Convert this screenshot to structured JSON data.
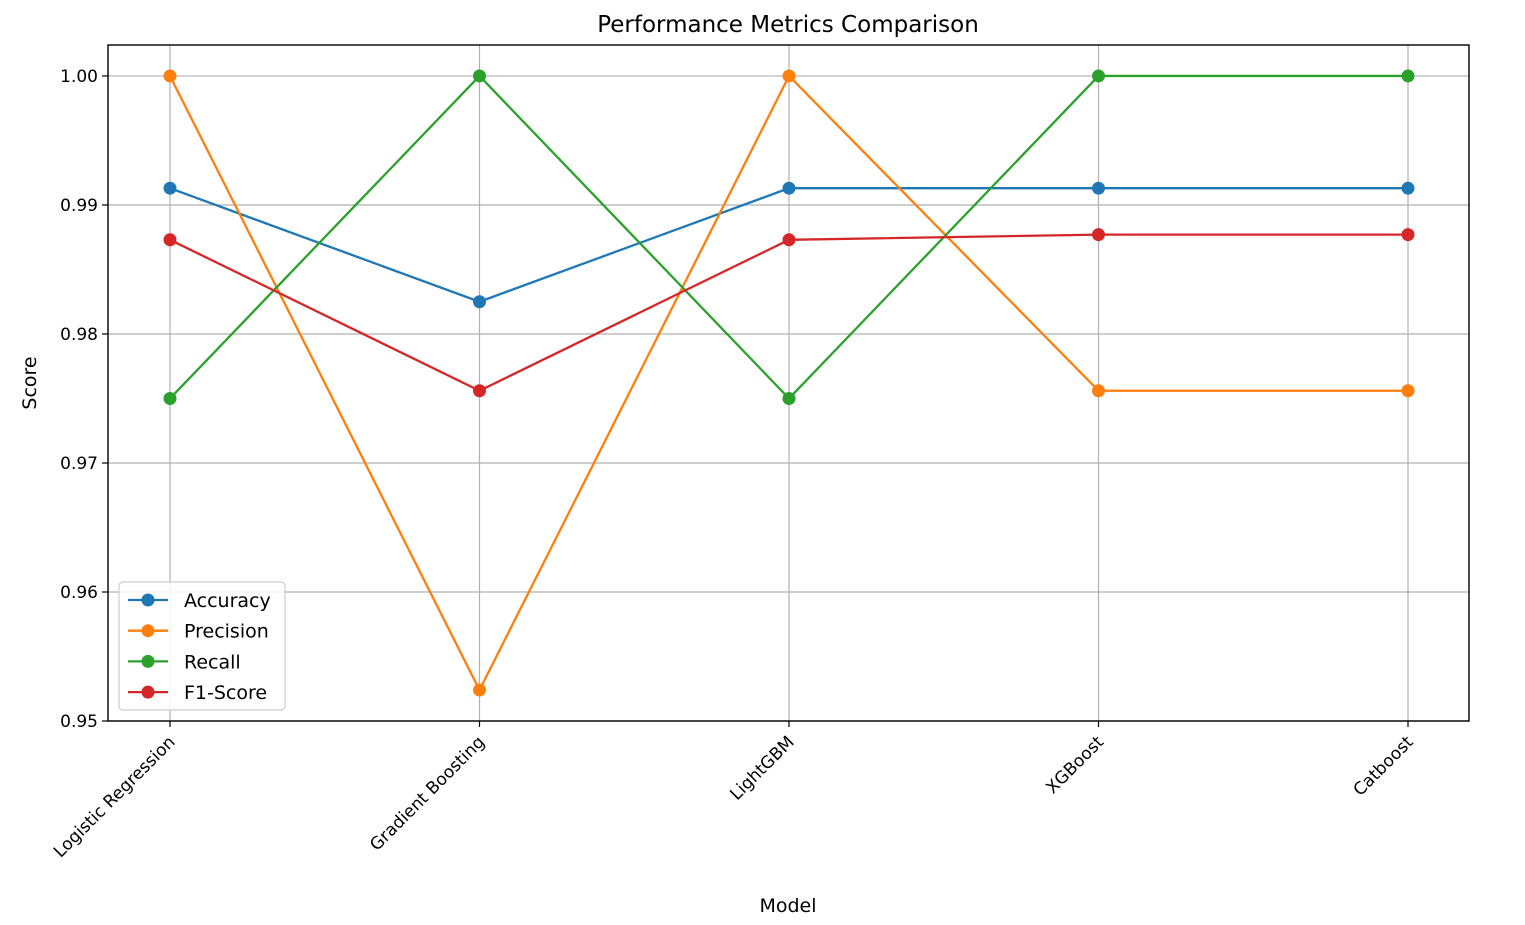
{
  "chart_data": {
    "type": "line",
    "title": "Performance Metrics Comparison",
    "xlabel": "Model",
    "ylabel": "Score",
    "categories": [
      "Logistic Regression",
      "Gradient Boosting",
      "LightGBM",
      "XGBoost",
      "Catboost"
    ],
    "ylim": [
      0.95,
      1.0024
    ],
    "yticks": [
      0.95,
      0.96,
      0.97,
      0.98,
      0.99,
      1.0
    ],
    "ytick_labels": [
      "0.95",
      "0.96",
      "0.97",
      "0.98",
      "0.99",
      "1.00"
    ],
    "grid": true,
    "legend_position": "lower-left",
    "series": [
      {
        "name": "Accuracy",
        "color": "#1f77b4",
        "marker": "circle",
        "values": [
          0.9913,
          0.9825,
          0.9913,
          0.9913,
          0.9913
        ]
      },
      {
        "name": "Precision",
        "color": "#ff7f0e",
        "marker": "circle",
        "values": [
          1.0,
          0.9524,
          1.0,
          0.9756,
          0.9756
        ]
      },
      {
        "name": "Recall",
        "color": "#2ca02c",
        "marker": "circle",
        "values": [
          0.975,
          1.0,
          0.975,
          1.0,
          1.0
        ]
      },
      {
        "name": "F1-Score",
        "color": "#d62728",
        "marker": "circle",
        "values": [
          0.9873,
          0.9756,
          0.9873,
          0.9877,
          0.9877
        ]
      }
    ]
  }
}
